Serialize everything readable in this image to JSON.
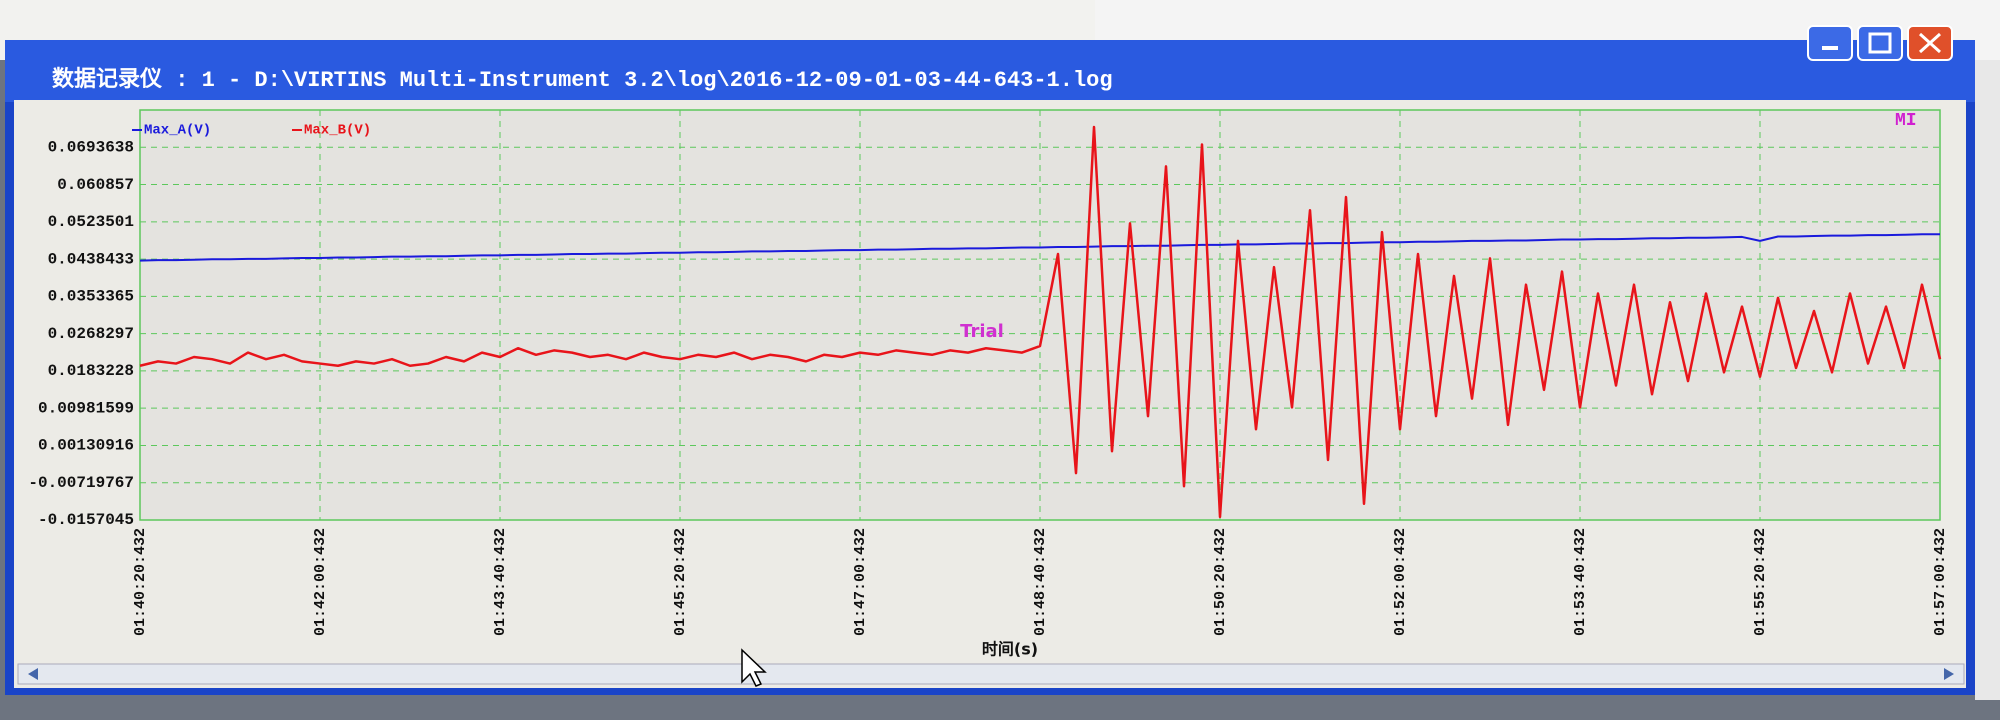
{
  "window": {
    "title": "数据记录仪 : 1 - D:\\VIRTINS Multi-Instrument 3.2\\log\\2016-12-09-01-03-44-643-1.log"
  },
  "chart_data": {
    "type": "line",
    "x_label": "时间(s)",
    "annotation": "Trial",
    "grid": true,
    "legend": "top-left",
    "x": [
      "01:40:20:432",
      "01:40:30:432",
      "01:40:40:432",
      "01:40:50:432",
      "01:41:00:432",
      "01:41:10:432",
      "01:41:20:432",
      "01:41:30:432",
      "01:41:40:432",
      "01:41:50:432",
      "01:42:00:432",
      "01:42:10:432",
      "01:42:20:432",
      "01:42:30:432",
      "01:42:40:432",
      "01:42:50:432",
      "01:43:00:432",
      "01:43:10:432",
      "01:43:20:432",
      "01:43:30:432",
      "01:43:40:432",
      "01:43:50:432",
      "01:44:00:432",
      "01:44:10:432",
      "01:44:20:432",
      "01:44:30:432",
      "01:44:40:432",
      "01:44:50:432",
      "01:45:00:432",
      "01:45:10:432",
      "01:45:20:432",
      "01:45:30:432",
      "01:45:40:432",
      "01:45:50:432",
      "01:46:00:432",
      "01:46:10:432",
      "01:46:20:432",
      "01:46:30:432",
      "01:46:40:432",
      "01:46:50:432",
      "01:47:00:432",
      "01:47:10:432",
      "01:47:20:432",
      "01:47:30:432",
      "01:47:40:432",
      "01:47:50:432",
      "01:48:00:432",
      "01:48:10:432",
      "01:48:20:432",
      "01:48:30:432",
      "01:48:40:432",
      "01:48:50:432",
      "01:49:00:432",
      "01:49:10:432",
      "01:49:20:432",
      "01:49:30:432",
      "01:49:40:432",
      "01:49:50:432",
      "01:50:00:432",
      "01:50:10:432",
      "01:50:20:432",
      "01:50:30:432",
      "01:50:40:432",
      "01:50:50:432",
      "01:51:00:432",
      "01:51:10:432",
      "01:51:20:432",
      "01:51:30:432",
      "01:51:40:432",
      "01:51:50:432",
      "01:52:00:432",
      "01:52:10:432",
      "01:52:20:432",
      "01:52:30:432",
      "01:52:40:432",
      "01:52:50:432",
      "01:53:00:432",
      "01:53:10:432",
      "01:53:20:432",
      "01:53:30:432",
      "01:53:40:432",
      "01:53:50:432",
      "01:54:00:432",
      "01:54:10:432",
      "01:54:20:432",
      "01:54:30:432",
      "01:54:40:432",
      "01:54:50:432",
      "01:55:00:432",
      "01:55:10:432",
      "01:55:20:432",
      "01:55:30:432",
      "01:55:40:432",
      "01:55:50:432",
      "01:56:00:432",
      "01:56:10:432",
      "01:56:20:432",
      "01:56:30:432",
      "01:56:40:432",
      "01:56:50:432",
      "01:57:00:432"
    ],
    "xlim": [
      "01:40:20:432",
      "01:57:00:432"
    ],
    "xticks": [
      "01:40:20:432",
      "01:42:00:432",
      "01:43:40:432",
      "01:45:20:432",
      "01:47:00:432",
      "01:48:40:432",
      "01:50:20:432",
      "01:52:00:432",
      "01:53:40:432",
      "01:55:20:432",
      "01:57:00:432"
    ],
    "ylim": [
      -0.0157045,
      0.0778706
    ],
    "yticks": [
      -0.0157045,
      -0.00719767,
      0.00130916,
      0.00981599,
      0.0183228,
      0.0268297,
      0.0353365,
      0.0438433,
      0.0523501,
      0.060857,
      0.0693638
    ],
    "series": [
      {
        "name": "Max_A(V)",
        "color": "#1a1adc",
        "values": [
          0.0435,
          0.0436,
          0.0436,
          0.0437,
          0.0438,
          0.0438,
          0.0439,
          0.0439,
          0.044,
          0.0441,
          0.0441,
          0.0442,
          0.0442,
          0.0443,
          0.0444,
          0.0444,
          0.0445,
          0.0445,
          0.0446,
          0.0447,
          0.0447,
          0.0448,
          0.0448,
          0.0449,
          0.045,
          0.045,
          0.0451,
          0.0451,
          0.0452,
          0.0453,
          0.0453,
          0.0454,
          0.0454,
          0.0455,
          0.0456,
          0.0456,
          0.0457,
          0.0457,
          0.0458,
          0.0459,
          0.0459,
          0.046,
          0.046,
          0.0461,
          0.0462,
          0.0462,
          0.0463,
          0.0463,
          0.0464,
          0.0465,
          0.0465,
          0.0466,
          0.0466,
          0.0467,
          0.0468,
          0.0468,
          0.0469,
          0.0469,
          0.047,
          0.0471,
          0.0471,
          0.0472,
          0.0472,
          0.0473,
          0.0474,
          0.0474,
          0.0475,
          0.0475,
          0.0476,
          0.0477,
          0.0477,
          0.0478,
          0.0478,
          0.0479,
          0.048,
          0.048,
          0.0481,
          0.0481,
          0.0482,
          0.0483,
          0.0483,
          0.0484,
          0.0484,
          0.0485,
          0.0486,
          0.0486,
          0.0487,
          0.0487,
          0.0488,
          0.0489,
          0.048,
          0.049,
          0.049,
          0.0491,
          0.0492,
          0.0492,
          0.0493,
          0.0493,
          0.0494,
          0.0495,
          0.0495
        ]
      },
      {
        "name": "Max_B(V)",
        "color": "#e8141a",
        "values": [
          0.0195,
          0.0205,
          0.02,
          0.0215,
          0.021,
          0.02,
          0.0225,
          0.021,
          0.022,
          0.0205,
          0.02,
          0.0195,
          0.0205,
          0.02,
          0.021,
          0.0195,
          0.02,
          0.0215,
          0.0205,
          0.0225,
          0.0215,
          0.0235,
          0.022,
          0.023,
          0.0225,
          0.0215,
          0.022,
          0.021,
          0.0225,
          0.0215,
          0.021,
          0.022,
          0.0215,
          0.0225,
          0.021,
          0.022,
          0.0215,
          0.0205,
          0.022,
          0.0215,
          0.0225,
          0.022,
          0.023,
          0.0225,
          0.022,
          0.023,
          0.0225,
          0.0235,
          0.023,
          0.0225,
          0.024,
          0.045,
          -0.005,
          0.074,
          0.0,
          0.052,
          0.008,
          0.065,
          -0.008,
          0.07,
          -0.015,
          0.048,
          0.005,
          0.042,
          0.01,
          0.055,
          -0.002,
          0.058,
          -0.012,
          0.05,
          0.005,
          0.045,
          0.008,
          0.04,
          0.012,
          0.044,
          0.006,
          0.038,
          0.014,
          0.041,
          0.01,
          0.036,
          0.015,
          0.038,
          0.013,
          0.034,
          0.016,
          0.036,
          0.018,
          0.033,
          0.017,
          0.035,
          0.019,
          0.032,
          0.018,
          0.036,
          0.02,
          0.033,
          0.019,
          0.038,
          0.021
        ]
      }
    ]
  }
}
